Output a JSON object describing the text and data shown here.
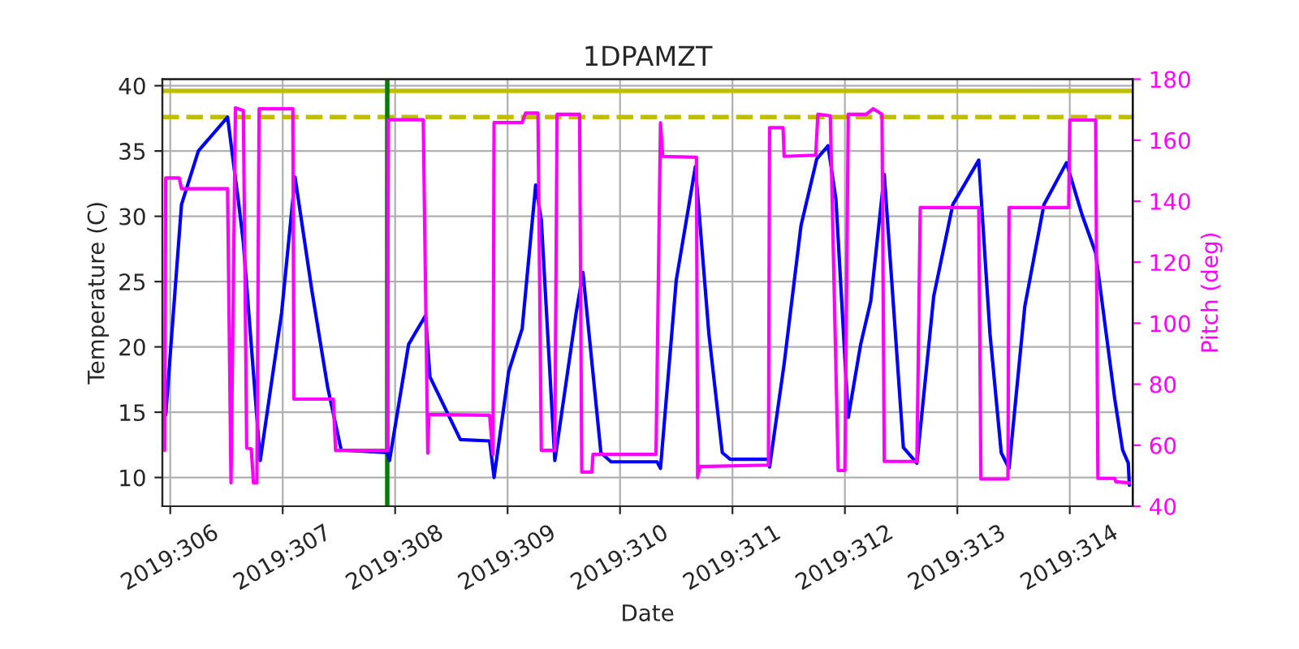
{
  "chart_data": {
    "type": "line",
    "title": "1DPAMZT",
    "xlabel": "Date",
    "ylabel": "Temperature (C)",
    "y2label": "Pitch (deg)",
    "xlim": [
      "2019-11-01T22:19",
      "2019-11-10T13:26"
    ],
    "xticks": [
      {
        "value": "2019-11-02",
        "label": "2019:306"
      },
      {
        "value": "2019-11-03",
        "label": "2019:307"
      },
      {
        "value": "2019-11-04",
        "label": "2019:308"
      },
      {
        "value": "2019-11-05",
        "label": "2019:309"
      },
      {
        "value": "2019-11-06",
        "label": "2019:310"
      },
      {
        "value": "2019-11-07",
        "label": "2019:311"
      },
      {
        "value": "2019-11-08",
        "label": "2019:312"
      },
      {
        "value": "2019-11-09",
        "label": "2019:313"
      },
      {
        "value": "2019-11-10",
        "label": "2019:314"
      }
    ],
    "ylim": [
      7.8,
      40.5
    ],
    "yticks": [
      10,
      15,
      20,
      25,
      30,
      35,
      40
    ],
    "y2lim": [
      40,
      180
    ],
    "y2ticks": [
      40,
      60,
      80,
      100,
      120,
      140,
      160,
      180
    ],
    "grid": true,
    "legend": false,
    "marker": "none",
    "line_style": "solid",
    "series": [
      {
        "color": "#0000ff",
        "axis": "y",
        "x": [
          "2019-11-01T23:02",
          "2019-11-02T02:24",
          "2019-11-02T06:00",
          "2019-11-02T12:14",
          "2019-11-02T14:38",
          "2019-11-02T15:36",
          "2019-11-02T19:12",
          "2019-11-02T23:46",
          "2019-11-03T02:38",
          "2019-11-03T06:14",
          "2019-11-03T09:36",
          "2019-11-03T12:29",
          "2019-11-03T22:19",
          "2019-11-03T22:48",
          "2019-11-04T02:53",
          "2019-11-04T06:29",
          "2019-11-04T07:26",
          "2019-11-04T13:55",
          "2019-11-04T20:10",
          "2019-11-04T21:07",
          "2019-11-05T00:14",
          "2019-11-05T03:07",
          "2019-11-05T06:00",
          "2019-11-05T07:12",
          "2019-11-05T10:05",
          "2019-11-05T14:38",
          "2019-11-05T16:05",
          "2019-11-05T19:55",
          "2019-11-05T22:05",
          "2019-11-06T07:55",
          "2019-11-06T08:38",
          "2019-11-06T12:00",
          "2019-11-06T16:05",
          "2019-11-06T18:58",
          "2019-11-06T21:50",
          "2019-11-06T23:31",
          "2019-11-07T07:41",
          "2019-11-07T07:55",
          "2019-11-07T11:02",
          "2019-11-07T14:38",
          "2019-11-07T18:00",
          "2019-11-07T20:24",
          "2019-11-07T22:05",
          "2019-11-08T00:43",
          "2019-11-08T03:22",
          "2019-11-08T05:31",
          "2019-11-08T08:24",
          "2019-11-08T12:29",
          "2019-11-08T15:22",
          "2019-11-08T18:58",
          "2019-11-08T23:02",
          "2019-11-09T04:34",
          "2019-11-09T06:58",
          "2019-11-09T09:22",
          "2019-11-09T11:02",
          "2019-11-09T14:24",
          "2019-11-09T18:29",
          "2019-11-09T23:17",
          "2019-11-10T02:38",
          "2019-11-10T05:31",
          "2019-11-10T09:36",
          "2019-11-10T11:17",
          "2019-11-10T12:29",
          "2019-11-10T12:43"
        ],
        "values": [
          14.8,
          30.9,
          35.0,
          37.6,
          30.9,
          28.0,
          11.3,
          22.6,
          33.0,
          24.3,
          16.9,
          12.1,
          11.9,
          11.3,
          20.2,
          22.4,
          17.7,
          12.9,
          12.8,
          10.0,
          18.1,
          21.4,
          32.4,
          29.7,
          11.3,
          22.6,
          25.7,
          11.9,
          11.2,
          11.2,
          10.7,
          25.1,
          33.8,
          21.0,
          11.9,
          11.4,
          11.4,
          10.8,
          18.7,
          29.3,
          34.4,
          35.4,
          31.3,
          14.6,
          20.2,
          23.5,
          33.2,
          12.3,
          11.1,
          23.9,
          30.9,
          34.3,
          21.0,
          11.9,
          10.7,
          23.1,
          30.9,
          34.1,
          30.1,
          27.2,
          16.0,
          12.1,
          11.1,
          9.4
        ]
      },
      {
        "color": "#ff00ff",
        "axis": "y2",
        "x": [
          "2019-11-01T22:48",
          "2019-11-01T23:02",
          "2019-11-02T01:55",
          "2019-11-02T02:24",
          "2019-11-02T12:14",
          "2019-11-02T12:58",
          "2019-11-02T13:55",
          "2019-11-02T15:36",
          "2019-11-02T16:19",
          "2019-11-02T17:17",
          "2019-11-02T17:46",
          "2019-11-02T18:29",
          "2019-11-02T18:58",
          "2019-11-03T02:10",
          "2019-11-03T02:24",
          "2019-11-03T10:48",
          "2019-11-03T11:17",
          "2019-11-03T22:19",
          "2019-11-03T22:34",
          "2019-11-04T06:00",
          "2019-11-04T06:58",
          "2019-11-04T07:12",
          "2019-11-04T20:10",
          "2019-11-04T20:53",
          "2019-11-04T21:07",
          "2019-11-05T03:07",
          "2019-11-05T03:50",
          "2019-11-05T06:29",
          "2019-11-05T07:12",
          "2019-11-05T10:05",
          "2019-11-05T10:34",
          "2019-11-05T15:22",
          "2019-11-05T15:50",
          "2019-11-05T18:00",
          "2019-11-05T18:14",
          "2019-11-06T07:41",
          "2019-11-06T08:38",
          "2019-11-06T09:07",
          "2019-11-06T16:19",
          "2019-11-06T16:34",
          "2019-11-06T17:02",
          "2019-11-07T07:41",
          "2019-11-07T07:55",
          "2019-11-07T10:48",
          "2019-11-07T11:02",
          "2019-11-07T17:46",
          "2019-11-07T18:14",
          "2019-11-07T20:53",
          "2019-11-07T22:34",
          "2019-11-08T00:00",
          "2019-11-08T00:43",
          "2019-11-08T04:34",
          "2019-11-08T06:00",
          "2019-11-08T07:55",
          "2019-11-08T08:24",
          "2019-11-08T15:22",
          "2019-11-08T16:05",
          "2019-11-09T04:34",
          "2019-11-09T05:02",
          "2019-11-09T10:48",
          "2019-11-09T11:02",
          "2019-11-09T23:46",
          "2019-11-10T00:00",
          "2019-11-10T05:31",
          "2019-11-10T06:00",
          "2019-11-10T09:36",
          "2019-11-10T09:50",
          "2019-11-10T12:43"
        ],
        "values": [
          58.3,
          147.6,
          147.6,
          144.1,
          144.1,
          47.7,
          170.6,
          169.7,
          59.1,
          58.8,
          47.7,
          47.7,
          170.3,
          170.3,
          75.1,
          75.1,
          58.3,
          58.3,
          166.7,
          166.7,
          57.4,
          70.1,
          69.8,
          57.0,
          165.8,
          165.8,
          168.9,
          168.9,
          58.3,
          58.3,
          168.5,
          168.5,
          51.2,
          51.2,
          57.0,
          57.0,
          165.7,
          154.7,
          154.4,
          49.4,
          53.0,
          53.5,
          164.1,
          164.1,
          154.7,
          155.1,
          168.5,
          168.0,
          51.7,
          51.7,
          168.5,
          168.5,
          170.3,
          168.5,
          54.7,
          54.7,
          137.9,
          137.9,
          48.9,
          48.9,
          137.9,
          137.9,
          166.6,
          166.6,
          49.1,
          49.1,
          48.0,
          47.7
        ]
      }
    ],
    "ref_lines": [
      {
        "axis": "y",
        "value": 39.6,
        "color": "#bfbf00",
        "line_style": "solid"
      },
      {
        "axis": "y",
        "value": 37.6,
        "color": "#bfbf00",
        "line_style": "dashed"
      },
      {
        "axis": "x",
        "value": "2019-11-03T22:19",
        "color": "#008000",
        "line_style": "solid"
      }
    ]
  }
}
